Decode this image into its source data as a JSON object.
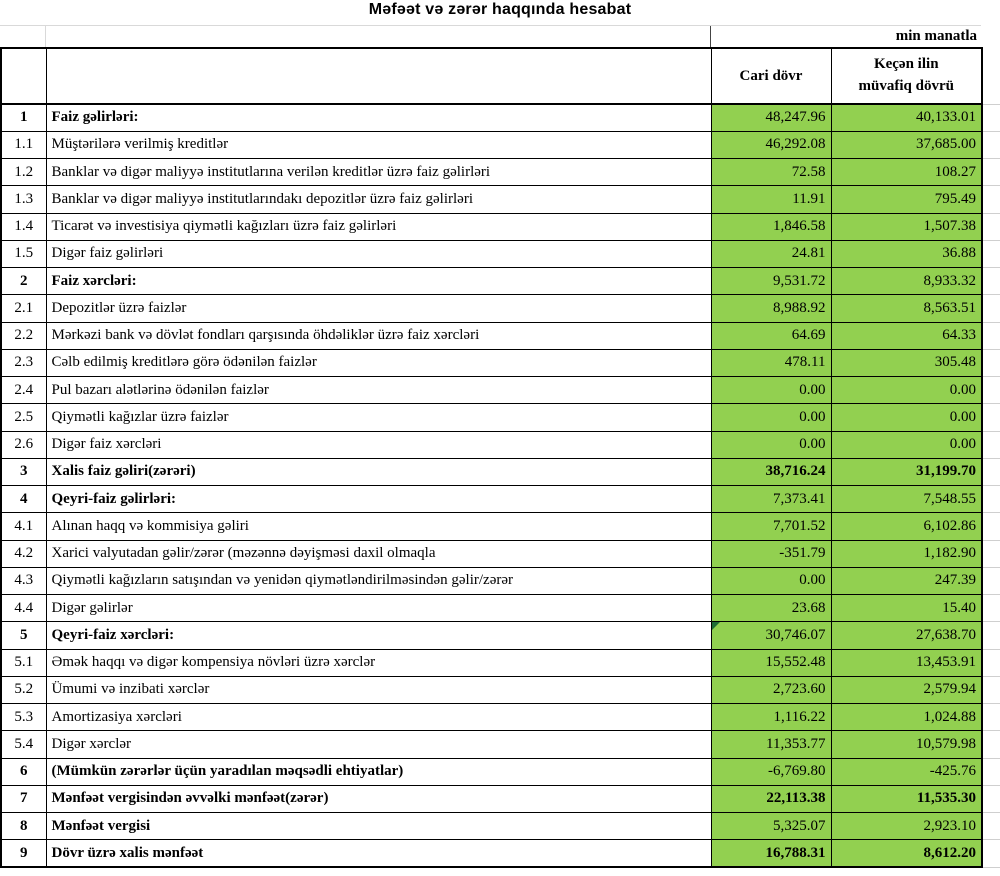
{
  "title": "Məfəət və zərər haqqında hesabat",
  "unit_label": "min manatla",
  "columns": {
    "current": "Cari dövr",
    "previous_line1": "Keçən ilin",
    "previous_line2": "müvafiq dövrü"
  },
  "colors": {
    "value_cell_green": "#92d050",
    "border_black": "#000000",
    "gridline_gray": "#cfcfcf",
    "flag_dark_green": "#1e6b34"
  },
  "rows": [
    {
      "no": "1",
      "label": "Faiz gəlirləri:",
      "current": "48,247.96",
      "previous": "40,133.01",
      "category": true,
      "bold_values": false,
      "flag": false
    },
    {
      "no": "1.1",
      "label": "Müştərilərə verilmiş kreditlər",
      "current": "46,292.08",
      "previous": "37,685.00",
      "category": false,
      "bold_values": false,
      "flag": false
    },
    {
      "no": "1.2",
      "label": "Banklar və digər maliyyə institutlarına verilən kreditlər üzrə faiz gəlirləri",
      "current": "72.58",
      "previous": "108.27",
      "category": false,
      "bold_values": false,
      "flag": false
    },
    {
      "no": "1.3",
      "label": "Banklar və digər maliyyə institutlarındakı depozitlər üzrə faiz gəlirləri",
      "current": "11.91",
      "previous": "795.49",
      "category": false,
      "bold_values": false,
      "flag": false
    },
    {
      "no": "1.4",
      "label": "Ticarət və investisiya qiymətli kağızları üzrə faiz gəlirləri",
      "current": "1,846.58",
      "previous": "1,507.38",
      "category": false,
      "bold_values": false,
      "flag": false
    },
    {
      "no": "1.5",
      "label": "Digər faiz gəlirləri",
      "current": "24.81",
      "previous": "36.88",
      "category": false,
      "bold_values": false,
      "flag": false
    },
    {
      "no": "2",
      "label": "Faiz xərcləri:",
      "current": "9,531.72",
      "previous": "8,933.32",
      "category": true,
      "bold_values": false,
      "flag": false
    },
    {
      "no": "2.1",
      "label": "Depozitlər üzrə faizlər",
      "current": "8,988.92",
      "previous": "8,563.51",
      "category": false,
      "bold_values": false,
      "flag": false
    },
    {
      "no": "2.2",
      "label": "Mərkəzi bank və dövlət fondları qarşısında öhdəliklər üzrə faiz xərcləri",
      "current": "64.69",
      "previous": "64.33",
      "category": false,
      "bold_values": false,
      "flag": false
    },
    {
      "no": "2.3",
      "label": "Cəlb edilmiş kreditlərə görə ödənilən faizlər",
      "current": "478.11",
      "previous": "305.48",
      "category": false,
      "bold_values": false,
      "flag": false
    },
    {
      "no": "2.4",
      "label": "Pul bazarı alətlərinə ödənilən faizlər",
      "current": "0.00",
      "previous": "0.00",
      "category": false,
      "bold_values": false,
      "flag": false
    },
    {
      "no": "2.5",
      "label": "Qiymətli kağızlar üzrə faizlər",
      "current": "0.00",
      "previous": "0.00",
      "category": false,
      "bold_values": false,
      "flag": false
    },
    {
      "no": "2.6",
      "label": "Digər faiz xərcləri",
      "current": "0.00",
      "previous": "0.00",
      "category": false,
      "bold_values": false,
      "flag": false
    },
    {
      "no": "3",
      "label": "Xalis faiz gəliri(zərəri)",
      "current": "38,716.24",
      "previous": "31,199.70",
      "category": true,
      "bold_values": true,
      "flag": false
    },
    {
      "no": "4",
      "label": "Qeyri-faiz gəlirləri:",
      "current": "7,373.41",
      "previous": "7,548.55",
      "category": true,
      "bold_values": false,
      "flag": false
    },
    {
      "no": "4.1",
      "label": "Alınan haqq və kommisiya gəliri",
      "current": "7,701.52",
      "previous": "6,102.86",
      "category": false,
      "bold_values": false,
      "flag": false
    },
    {
      "no": "4.2",
      "label": "Xarici valyutadan gəlir/zərər (məzənnə dəyişməsi daxil olmaqla",
      "current": "-351.79",
      "previous": "1,182.90",
      "category": false,
      "bold_values": false,
      "flag": false
    },
    {
      "no": "4.3",
      "label": "Qiymətli kağızların satışından və yenidən qiymətləndirilməsindən gəlir/zərər",
      "current": "0.00",
      "previous": "247.39",
      "category": false,
      "bold_values": false,
      "flag": false
    },
    {
      "no": "4.4",
      "label": "Digər gəlirlər",
      "current": "23.68",
      "previous": "15.40",
      "category": false,
      "bold_values": false,
      "flag": false
    },
    {
      "no": "5",
      "label": "Qeyri-faiz xərcləri:",
      "current": "30,746.07",
      "previous": "27,638.70",
      "category": true,
      "bold_values": false,
      "flag": true
    },
    {
      "no": "5.1",
      "label": "Əmək haqqı və digər kompensiya növləri üzrə xərclər",
      "current": "15,552.48",
      "previous": "13,453.91",
      "category": false,
      "bold_values": false,
      "flag": false
    },
    {
      "no": "5.2",
      "label": "Ümumi və inzibati xərclər",
      "current": "2,723.60",
      "previous": "2,579.94",
      "category": false,
      "bold_values": false,
      "flag": false
    },
    {
      "no": "5.3",
      "label": "Amortizasiya xərcləri",
      "current": "1,116.22",
      "previous": "1,024.88",
      "category": false,
      "bold_values": false,
      "flag": false
    },
    {
      "no": "5.4",
      "label": "Digər xərclər",
      "current": "11,353.77",
      "previous": "10,579.98",
      "category": false,
      "bold_values": false,
      "flag": false
    },
    {
      "no": "6",
      "label": "(Mümkün zərərlər üçün yaradılan məqsədli ehtiyatlar)",
      "current": "-6,769.80",
      "previous": "-425.76",
      "category": true,
      "bold_values": false,
      "flag": false
    },
    {
      "no": "7",
      "label": "Mənfəət vergisindən əvvəlki mənfəət(zərər)",
      "current": "22,113.38",
      "previous": "11,535.30",
      "category": true,
      "bold_values": true,
      "flag": false
    },
    {
      "no": "8",
      "label": "Mənfəət vergisi",
      "current": "5,325.07",
      "previous": "2,923.10",
      "category": true,
      "bold_values": false,
      "flag": false
    },
    {
      "no": "9",
      "label": "Dövr üzrə xalis mənfəət",
      "current": "16,788.31",
      "previous": "8,612.20",
      "category": true,
      "bold_values": true,
      "flag": false
    }
  ]
}
